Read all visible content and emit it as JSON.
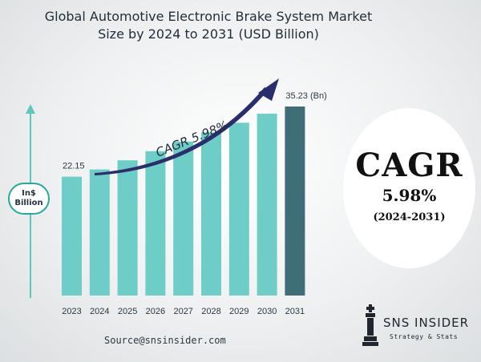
{
  "title_line1": "Global Automotive Electronic Brake System Market",
  "title_line2": "Size by 2024 to 2031 (USD Billion)",
  "unit_label_line1": "In$",
  "unit_label_line2": "Billion",
  "trend_label": "CAGR 5.98%",
  "cagr_box": {
    "heading": "CAGR",
    "value": "5.98%",
    "period": "(2024-2031)"
  },
  "source": "Source@snsinsider.com",
  "logo": {
    "name": "SNS INSIDER",
    "tagline": "Strategy & Stats"
  },
  "colors": {
    "bar": "#6ecdc6",
    "highlight_bar": "#3f6e78",
    "arrow": "#2a2f6b",
    "axis": "#5dc7be"
  },
  "chart_data": {
    "type": "bar",
    "categories": [
      "2023",
      "2024",
      "2025",
      "2026",
      "2027",
      "2028",
      "2029",
      "2030",
      "2031"
    ],
    "values": [
      22.15,
      23.5,
      25.2,
      26.9,
      28.7,
      30.4,
      32.2,
      33.9,
      35.23
    ],
    "data_labels": {
      "2023": "22.15",
      "2031": "35.23 (Bn)"
    },
    "ylim": [
      0,
      35.23
    ],
    "grid": false,
    "legend": "none"
  }
}
